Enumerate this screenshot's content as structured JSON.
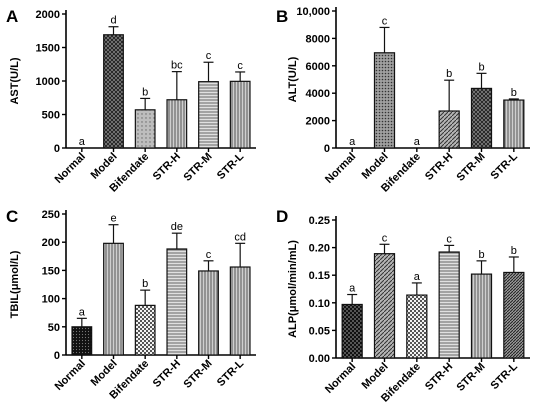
{
  "chart_data": [
    {
      "type": "bar",
      "panel_label": "A",
      "ylabel": "AST(U/L)",
      "ylim": [
        0,
        2000
      ],
      "yticks": [
        0,
        500,
        1000,
        1500,
        2000
      ],
      "ytick_labels": [
        "0",
        "500",
        "1000",
        "1500",
        "2000"
      ],
      "categories": [
        "Normal",
        "Model",
        "Bifendate",
        "STR-H",
        "STR-M",
        "STR-L"
      ],
      "values": [
        0,
        1690,
        570,
        720,
        990,
        995
      ],
      "errors": [
        0,
        120,
        170,
        420,
        290,
        140
      ],
      "significance": [
        "a",
        "d",
        "b",
        "bc",
        "c",
        "c"
      ],
      "patterns": [
        "solid",
        "crosshatch",
        "light-fill",
        "vertical-lines",
        "horizontal-lines",
        "vertical-lines"
      ]
    },
    {
      "type": "bar",
      "panel_label": "B",
      "ylabel": "ALT(U/L)",
      "ylim": [
        0,
        10000
      ],
      "yticks": [
        0,
        2000,
        4000,
        6000,
        8000,
        10000
      ],
      "ytick_labels": [
        "0",
        "2000",
        "4000",
        "6000",
        "8000",
        "10,000"
      ],
      "categories": [
        "Normal",
        "Model",
        "Bifendate",
        "STR-H",
        "STR-M",
        "STR-L"
      ],
      "values": [
        0,
        6950,
        0,
        2700,
        4350,
        3500
      ],
      "errors": [
        0,
        1850,
        0,
        2250,
        1100,
        80
      ],
      "significance": [
        "a",
        "c",
        "a",
        "b",
        "b",
        "b"
      ],
      "patterns": [
        "solid",
        "dotted",
        "light-fill",
        "diagonal",
        "crosshatch",
        "vertical-lines"
      ]
    },
    {
      "type": "bar",
      "panel_label": "C",
      "ylabel": "TBIL(μmol/L)",
      "ylim": [
        0,
        250
      ],
      "yticks": [
        0,
        50,
        100,
        150,
        200,
        250
      ],
      "ytick_labels": [
        "0",
        "50",
        "100",
        "150",
        "200",
        "250"
      ],
      "categories": [
        "Normal",
        "Model",
        "Bifendate",
        "STR-H",
        "STR-M",
        "STR-L"
      ],
      "values": [
        50,
        198,
        88,
        188,
        149,
        156
      ],
      "errors": [
        15,
        33,
        27,
        28,
        18,
        42
      ],
      "significance": [
        "a",
        "e",
        "b",
        "de",
        "c",
        "cd"
      ],
      "patterns": [
        "dotted-dark",
        "vertical-lines",
        "checker",
        "horizontal-lines",
        "vertical-lines",
        "vertical-lines"
      ]
    },
    {
      "type": "bar",
      "panel_label": "D",
      "ylabel": "ALP(μmol/min/mL)",
      "ylim": [
        0,
        0.25
      ],
      "yticks": [
        0,
        0.05,
        0.1,
        0.15,
        0.2,
        0.25
      ],
      "ytick_labels": [
        "0.00",
        "0.05",
        "0.10",
        "0.15",
        "0.20",
        "0.25"
      ],
      "categories": [
        "Normal",
        "Model",
        "Bifendate",
        "STR-H",
        "STR-M",
        "STR-L"
      ],
      "values": [
        0.097,
        0.189,
        0.114,
        0.192,
        0.152,
        0.155
      ],
      "errors": [
        0.018,
        0.017,
        0.022,
        0.012,
        0.024,
        0.028
      ],
      "significance": [
        "a",
        "c",
        "a",
        "c",
        "b",
        "b"
      ],
      "patterns": [
        "checker-dark",
        "diagonal",
        "checker",
        "horizontal-lines",
        "vertical-lines",
        "diagonal-dense"
      ]
    }
  ]
}
